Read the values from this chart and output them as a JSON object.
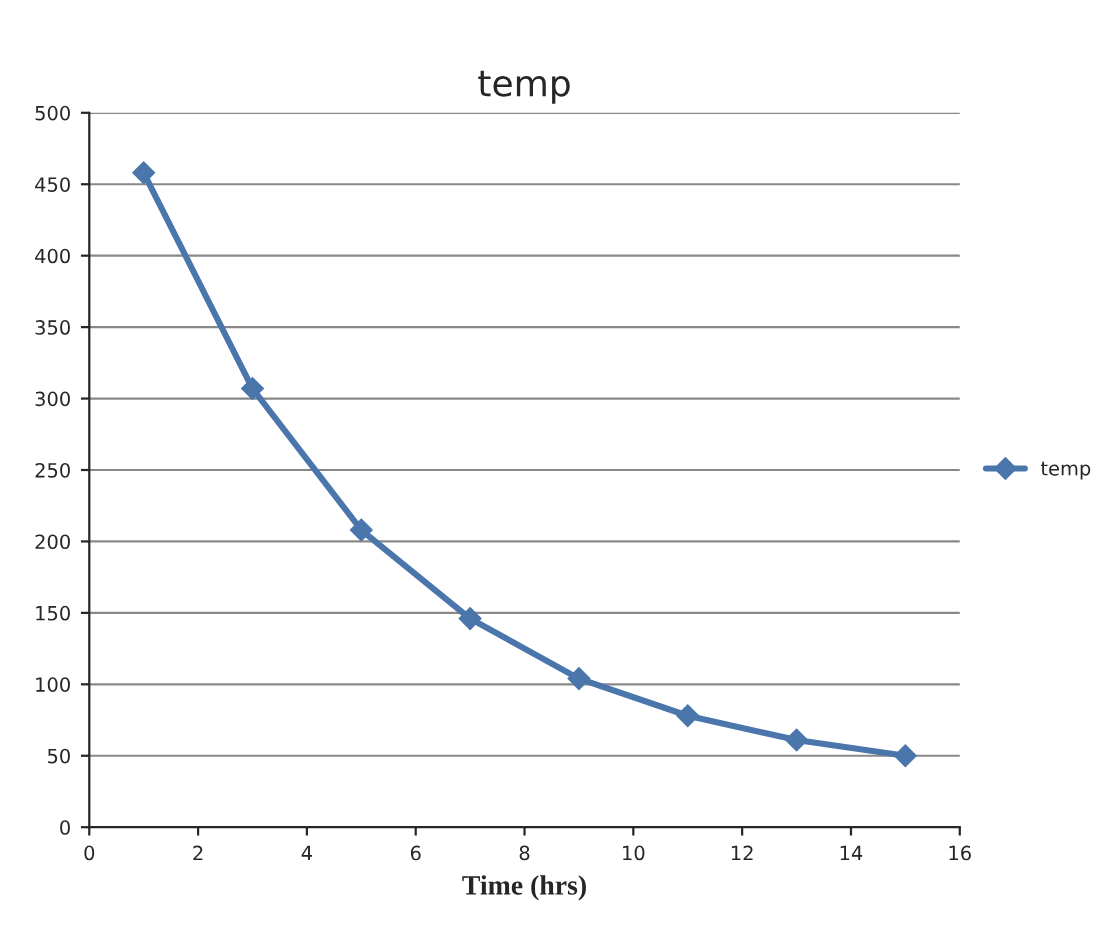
{
  "chart_data": {
    "type": "line",
    "title": "temp",
    "xlabel": "Time (hrs)",
    "x": [
      1,
      3,
      5,
      7,
      9,
      11,
      13,
      15
    ],
    "series": [
      {
        "name": "temp",
        "color": "#4a76ac",
        "values": [
          458,
          307,
          208,
          146,
          104,
          78,
          61,
          50
        ]
      }
    ],
    "xlim": [
      0,
      16
    ],
    "xticks": [
      0,
      2,
      4,
      6,
      8,
      10,
      12,
      14,
      16
    ],
    "ylim": [
      0,
      500
    ],
    "yticks": [
      0,
      50,
      100,
      150,
      200,
      250,
      300,
      350,
      400,
      450,
      500
    ],
    "grid": "y",
    "legend": "right",
    "marker": "diamond",
    "line_style": "solid"
  }
}
